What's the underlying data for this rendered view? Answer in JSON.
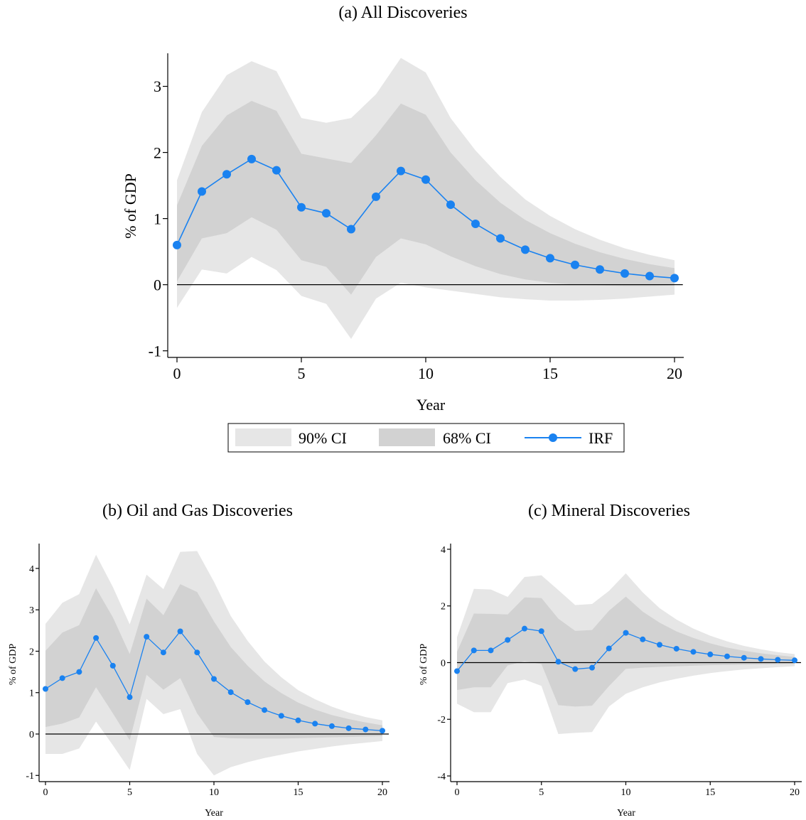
{
  "colors": {
    "ci90": "#e6e6e6",
    "ci68": "#d2d2d2",
    "irf": "#1a82f0",
    "axis": "#000000",
    "zero_line": "#000000"
  },
  "legend": {
    "placement": "below-top-panel",
    "items": [
      {
        "key": "ci90",
        "label": "90% CI"
      },
      {
        "key": "ci68",
        "label": "68% CI"
      },
      {
        "key": "irf",
        "label": "IRF"
      }
    ]
  },
  "chart_data": [
    {
      "id": "a",
      "type": "area",
      "title": "(a) All Discoveries",
      "xlabel": "Year",
      "ylabel": "% of GDP",
      "xlim": [
        0,
        20
      ],
      "ylim": [
        -1.1,
        3.5
      ],
      "xticks": [
        0,
        5,
        10,
        15,
        20
      ],
      "yticks": [
        -1,
        0,
        1,
        2,
        3
      ],
      "x": [
        0,
        1,
        2,
        3,
        4,
        5,
        6,
        7,
        8,
        9,
        10,
        11,
        12,
        13,
        14,
        15,
        16,
        17,
        18,
        19,
        20
      ],
      "series": [
        {
          "name": "IRF",
          "values": [
            0.6,
            1.41,
            1.67,
            1.9,
            1.73,
            1.17,
            1.08,
            0.84,
            1.33,
            1.72,
            1.59,
            1.21,
            0.92,
            0.7,
            0.53,
            0.4,
            0.3,
            0.23,
            0.17,
            0.13,
            0.1
          ]
        },
        {
          "name": "68% CI",
          "lower": [
            0.05,
            0.7,
            0.78,
            1.02,
            0.83,
            0.37,
            0.27,
            -0.15,
            0.42,
            0.7,
            0.61,
            0.43,
            0.28,
            0.16,
            0.08,
            0.03,
            0.0,
            -0.01,
            -0.02,
            -0.02,
            -0.01
          ],
          "upper": [
            1.2,
            2.1,
            2.56,
            2.78,
            2.63,
            1.98,
            1.91,
            1.84,
            2.26,
            2.74,
            2.57,
            2.0,
            1.58,
            1.24,
            0.98,
            0.78,
            0.62,
            0.49,
            0.39,
            0.31,
            0.25
          ]
        },
        {
          "name": "90% CI",
          "lower": [
            -0.35,
            0.23,
            0.17,
            0.42,
            0.22,
            -0.17,
            -0.29,
            -0.82,
            -0.21,
            0.03,
            -0.04,
            -0.09,
            -0.14,
            -0.19,
            -0.22,
            -0.24,
            -0.24,
            -0.23,
            -0.21,
            -0.18,
            -0.15
          ],
          "upper": [
            1.58,
            2.61,
            3.17,
            3.38,
            3.23,
            2.52,
            2.45,
            2.52,
            2.88,
            3.43,
            3.21,
            2.52,
            2.03,
            1.63,
            1.29,
            1.04,
            0.84,
            0.68,
            0.55,
            0.45,
            0.37
          ]
        }
      ]
    },
    {
      "id": "b",
      "type": "area",
      "title": "(b) Oil and Gas Discoveries",
      "xlabel": "Year",
      "ylabel": "% of GDP",
      "xlim": [
        0,
        20
      ],
      "ylim": [
        -1.15,
        4.6
      ],
      "xticks": [
        0,
        5,
        10,
        15,
        20
      ],
      "yticks": [
        -1,
        0,
        1,
        2,
        3,
        4
      ],
      "x": [
        0,
        1,
        2,
        3,
        4,
        5,
        6,
        7,
        8,
        9,
        10,
        11,
        12,
        13,
        14,
        15,
        16,
        17,
        18,
        19,
        20
      ],
      "series": [
        {
          "name": "IRF",
          "values": [
            1.09,
            1.35,
            1.5,
            2.32,
            1.65,
            0.89,
            2.35,
            1.97,
            2.48,
            1.97,
            1.33,
            1.01,
            0.77,
            0.58,
            0.44,
            0.33,
            0.25,
            0.19,
            0.14,
            0.11,
            0.08
          ]
        },
        {
          "name": "68% CI",
          "lower": [
            0.17,
            0.25,
            0.4,
            1.13,
            0.5,
            -0.15,
            1.43,
            1.07,
            1.35,
            0.5,
            -0.07,
            -0.1,
            -0.11,
            -0.11,
            -0.11,
            -0.1,
            -0.09,
            -0.08,
            -0.07,
            -0.06,
            -0.05
          ],
          "upper": [
            2.01,
            2.45,
            2.63,
            3.52,
            2.82,
            1.93,
            3.27,
            2.87,
            3.62,
            3.43,
            2.72,
            2.1,
            1.65,
            1.27,
            0.99,
            0.76,
            0.59,
            0.46,
            0.36,
            0.28,
            0.21
          ]
        },
        {
          "name": "90% CI",
          "lower": [
            -0.48,
            -0.48,
            -0.35,
            0.3,
            -0.27,
            -0.87,
            0.85,
            0.48,
            0.6,
            -0.48,
            -1.0,
            -0.8,
            -0.68,
            -0.58,
            -0.5,
            -0.42,
            -0.36,
            -0.3,
            -0.25,
            -0.21,
            -0.17
          ],
          "upper": [
            2.66,
            3.17,
            3.38,
            4.33,
            3.55,
            2.65,
            3.85,
            3.5,
            4.4,
            4.42,
            3.68,
            2.85,
            2.25,
            1.75,
            1.37,
            1.06,
            0.84,
            0.66,
            0.52,
            0.41,
            0.33
          ]
        }
      ]
    },
    {
      "id": "c",
      "type": "area",
      "title": "(c) Mineral Discoveries",
      "xlabel": "Year",
      "ylabel": "% of GDP",
      "xlim": [
        0,
        20
      ],
      "ylim": [
        -4.2,
        4.2
      ],
      "xticks": [
        0,
        5,
        10,
        15,
        20
      ],
      "yticks": [
        -4,
        -2,
        0,
        2,
        4
      ],
      "x": [
        0,
        1,
        2,
        3,
        4,
        5,
        6,
        7,
        8,
        9,
        10,
        11,
        12,
        13,
        14,
        15,
        16,
        17,
        18,
        19,
        20
      ],
      "series": [
        {
          "name": "IRF",
          "values": [
            -0.3,
            0.43,
            0.43,
            0.8,
            1.2,
            1.11,
            0.03,
            -0.23,
            -0.18,
            0.5,
            1.05,
            0.82,
            0.63,
            0.49,
            0.38,
            0.29,
            0.22,
            0.17,
            0.13,
            0.1,
            0.08
          ]
        },
        {
          "name": "68% CI",
          "lower": [
            -0.97,
            -0.87,
            -0.87,
            -0.1,
            0.05,
            -0.05,
            -1.5,
            -1.55,
            -1.52,
            -0.83,
            -0.22,
            -0.18,
            -0.15,
            -0.13,
            -0.11,
            -0.09,
            -0.08,
            -0.07,
            -0.06,
            -0.05,
            -0.04
          ],
          "upper": [
            0.38,
            1.73,
            1.72,
            1.7,
            2.3,
            2.28,
            1.55,
            1.12,
            1.15,
            1.83,
            2.33,
            1.8,
            1.41,
            1.1,
            0.87,
            0.68,
            0.53,
            0.42,
            0.33,
            0.26,
            0.2
          ]
        },
        {
          "name": "90% CI",
          "lower": [
            -1.45,
            -1.75,
            -1.75,
            -0.72,
            -0.6,
            -0.82,
            -2.52,
            -2.48,
            -2.45,
            -1.55,
            -1.1,
            -0.87,
            -0.7,
            -0.57,
            -0.46,
            -0.37,
            -0.3,
            -0.24,
            -0.2,
            -0.16,
            -0.13
          ],
          "upper": [
            0.9,
            2.6,
            2.58,
            2.32,
            3.02,
            3.08,
            2.56,
            2.03,
            2.07,
            2.53,
            3.15,
            2.48,
            1.92,
            1.52,
            1.2,
            0.95,
            0.75,
            0.59,
            0.47,
            0.37,
            0.3
          ]
        }
      ]
    }
  ]
}
